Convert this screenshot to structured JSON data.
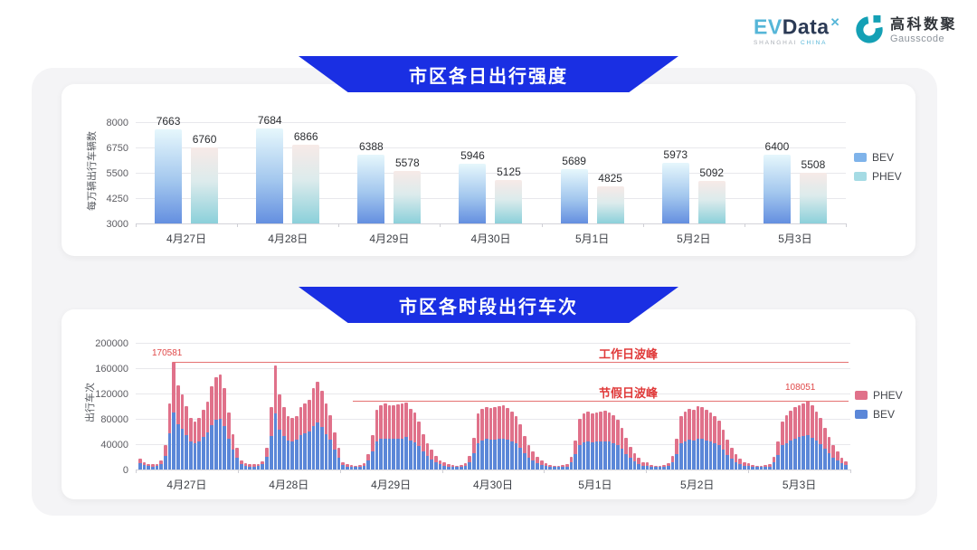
{
  "header": {
    "evdata": {
      "ev": "EV",
      "data": "Data",
      "sup": "✕",
      "sub_grey": "SHANGHAI",
      "sub_blue": "CHINA"
    },
    "gausscode": {
      "cn": "高科数聚",
      "en": "Gausscode",
      "icon": "gausscode-g-icon",
      "color": "#14a0b5"
    }
  },
  "colors": {
    "banner_blue": "#1a2fe3",
    "bev_bar_top": "#e6f7fc",
    "bev_bar_bottom": "#648fe0",
    "phev_bar_top": "#f7eae7",
    "phev_bar_bottom": "#8bd0da",
    "hourly_bev": "#5b87d8",
    "hourly_phev": "#e0718a",
    "annotation_red": "#e03a3a",
    "daily_legend_bev": "#7fb3ea",
    "daily_legend_phev": "#a5dbe4"
  },
  "chart_data": [
    {
      "type": "bar",
      "title": "市区各日出行强度",
      "ylabel": "每万辆出行车辆数",
      "ylim": [
        3000,
        8000
      ],
      "yticks": [
        8000,
        6750,
        5500,
        4250,
        3000
      ],
      "grid": true,
      "legend_position": "right",
      "categories": [
        "4月27日",
        "4月28日",
        "4月29日",
        "4月30日",
        "5月1日",
        "5月2日",
        "5月3日"
      ],
      "series": [
        {
          "name": "BEV",
          "values": [
            7663,
            7684,
            6388,
            5946,
            5689,
            5973,
            6400
          ]
        },
        {
          "name": "PHEV",
          "values": [
            6760,
            6866,
            5578,
            5125,
            4825,
            5092,
            5508
          ]
        }
      ]
    },
    {
      "type": "bar",
      "stacked": true,
      "title": "市区各时段出行车次",
      "ylabel": "出行车次",
      "ylim": [
        0,
        200000
      ],
      "yticks": [
        200000,
        160000,
        120000,
        80000,
        40000,
        0
      ],
      "grid": true,
      "legend_position": "right",
      "hours_per_day": 24,
      "categories": [
        "4月27日",
        "4月28日",
        "4月29日",
        "4月30日",
        "5月1日",
        "5月2日",
        "5月3日"
      ],
      "series": [
        {
          "name": "BEV",
          "values_by_day": [
            [
              10000,
              7000,
              6000,
              5000,
              6000,
              9000,
              22000,
              57000,
              90000,
              72000,
              64000,
              54000,
              45000,
              42000,
              45000,
              52000,
              58000,
              70000,
              79000,
              80000,
              69000,
              49000,
              31000,
              19000
            ],
            [
              9000,
              6000,
              5000,
              5000,
              6000,
              8000,
              20000,
              53000,
              88000,
              63000,
              53000,
              46000,
              44000,
              47000,
              54000,
              57000,
              60000,
              69000,
              74000,
              67000,
              56000,
              47000,
              32000,
              19000
            ],
            [
              7000,
              5000,
              4000,
              4000,
              4000,
              6000,
              14000,
              28000,
              45000,
              48000,
              49000,
              48000,
              48000,
              49000,
              49000,
              51000,
              46000,
              43000,
              37000,
              28000,
              21000,
              16000,
              12000,
              8000
            ],
            [
              6000,
              5000,
              4000,
              4000,
              4000,
              6000,
              12000,
              26000,
              42000,
              46000,
              48000,
              47000,
              47000,
              48000,
              49000,
              47000,
              45000,
              41000,
              35000,
              26000,
              19000,
              14000,
              10000,
              7000
            ],
            [
              6000,
              4000,
              4000,
              4000,
              4000,
              5000,
              11000,
              24000,
              39000,
              43000,
              44000,
              43000,
              44000,
              45000,
              45000,
              44000,
              42000,
              39000,
              33000,
              25000,
              18000,
              13000,
              9000,
              6000
            ],
            [
              6000,
              4000,
              4000,
              4000,
              4000,
              6000,
              12000,
              25000,
              41000,
              45000,
              47000,
              46000,
              49000,
              48000,
              46000,
              44000,
              41000,
              38000,
              31000,
              23000,
              17000,
              12000,
              9000,
              6000
            ],
            [
              6000,
              4000,
              4000,
              4000,
              4000,
              5000,
              11000,
              23000,
              38000,
              42000,
              46000,
              49000,
              51000,
              53000,
              55000,
              50000,
              46000,
              40000,
              33000,
              26000,
              19000,
              14000,
              10000,
              7000
            ]
          ]
        },
        {
          "name": "PHEV",
          "values_by_day": [
            [
              7000,
              4000,
              3000,
              3000,
              3000,
              5000,
              16000,
              48000,
              80581,
              61000,
              55000,
              46000,
              37000,
              34000,
              37000,
              43000,
              49000,
              61000,
              67000,
              70000,
              60000,
              41000,
              25000,
              15000
            ],
            [
              6000,
              4000,
              3000,
              3000,
              3000,
              5000,
              15000,
              45000,
              77000,
              55000,
              46000,
              38000,
              37000,
              38000,
              45000,
              47000,
              50000,
              59000,
              64000,
              58000,
              48000,
              39000,
              26000,
              15000
            ],
            [
              5000,
              3000,
              3000,
              2000,
              3000,
              4000,
              11000,
              27000,
              50000,
              53000,
              55000,
              53000,
              54000,
              54000,
              55000,
              55000,
              50000,
              47000,
              39000,
              28000,
              21000,
              15000,
              10000,
              7000
            ],
            [
              5000,
              3000,
              3000,
              2000,
              3000,
              4000,
              10000,
              24000,
              46000,
              50000,
              51000,
              50000,
              51000,
              52000,
              52000,
              50000,
              47000,
              44000,
              36000,
              27000,
              20000,
              14000,
              10000,
              7000
            ],
            [
              4000,
              3000,
              2000,
              2000,
              3000,
              4000,
              9000,
              22000,
              41000,
              45000,
              47000,
              46000,
              46000,
              47000,
              48000,
              46000,
              44000,
              40000,
              33000,
              25000,
              18000,
              13000,
              9000,
              6000
            ],
            [
              5000,
              3000,
              2000,
              2000,
              3000,
              4000,
              10000,
              23000,
              44000,
              47000,
              49000,
              48000,
              51000,
              50000,
              49000,
              46000,
              43000,
              39000,
              32000,
              24000,
              17000,
              12000,
              8000,
              6000
            ],
            [
              4000,
              3000,
              2000,
              2000,
              3000,
              4000,
              9000,
              21000,
              38000,
              44000,
              47000,
              49000,
              51000,
              52000,
              53051,
              51000,
              46000,
              41000,
              33000,
              26000,
              19000,
              14000,
              9000,
              6000
            ]
          ]
        }
      ],
      "annotations": [
        {
          "label": "工作日波峰",
          "value": 170581,
          "anchor_bar_index": 8
        },
        {
          "label": "节假日波峰",
          "value": 108051,
          "anchor_bar_index": 158
        }
      ]
    }
  ]
}
